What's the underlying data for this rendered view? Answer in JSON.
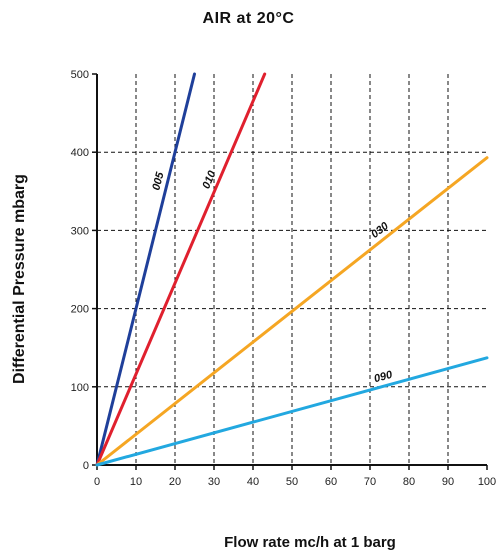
{
  "chart_data": {
    "type": "line",
    "title": "AIR at 20°C",
    "xlabel": "Flow rate mc/h at 1 barg",
    "ylabel": "Differential Pressure mbarg",
    "xlim": [
      0,
      100
    ],
    "ylim": [
      0,
      500
    ],
    "x_ticks": [
      "0",
      "10",
      "20",
      "30",
      "40",
      "50",
      "60",
      "70",
      "80",
      "90",
      "100"
    ],
    "y_ticks": [
      "0",
      "100",
      "200",
      "300",
      "400",
      "500"
    ],
    "grid": true,
    "grid_style": "dashed",
    "series": [
      {
        "name": "005",
        "color": "#1f3f9a",
        "points": [
          [
            0,
            0
          ],
          [
            25,
            500
          ]
        ]
      },
      {
        "name": "010",
        "color": "#e0202e",
        "points": [
          [
            0,
            0
          ],
          [
            43,
            500
          ]
        ]
      },
      {
        "name": "030",
        "color": "#f5a623",
        "points": [
          [
            0,
            0
          ],
          [
            100,
            393
          ]
        ]
      },
      {
        "name": "090",
        "color": "#22a8e0",
        "points": [
          [
            0,
            0
          ],
          [
            100,
            137
          ]
        ]
      }
    ]
  }
}
